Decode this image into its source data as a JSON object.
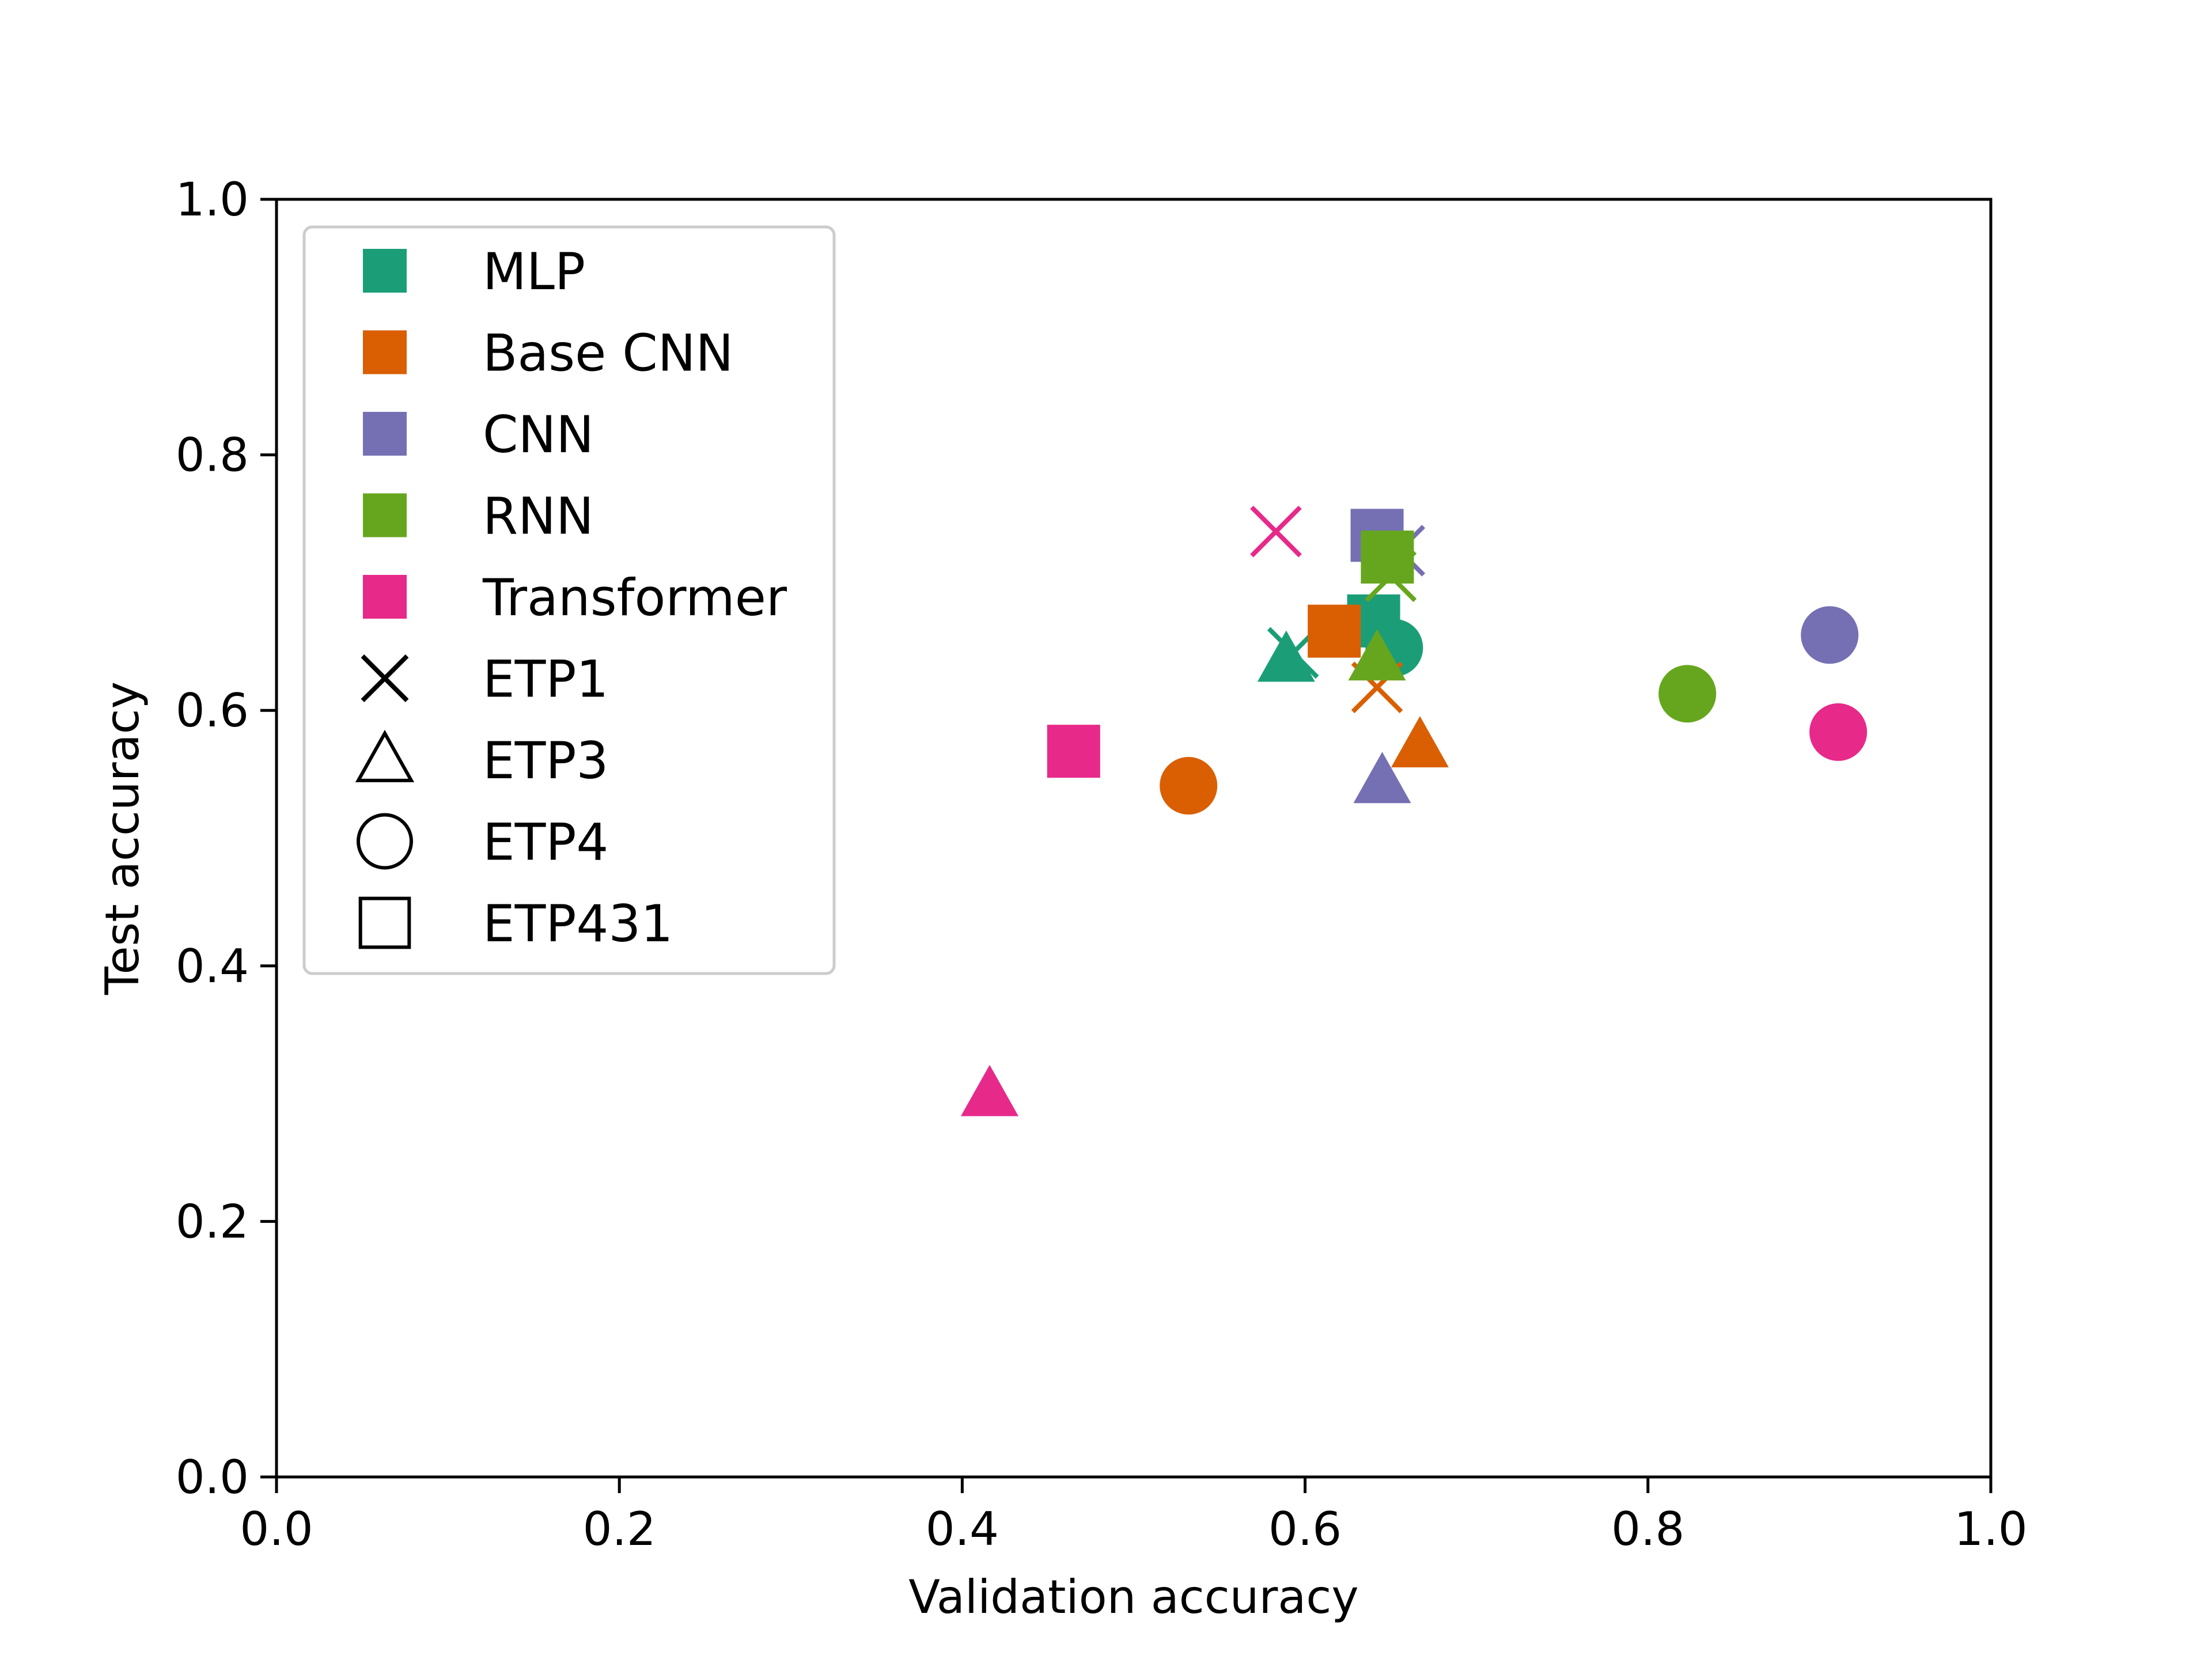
{
  "chart_data": {
    "type": "scatter",
    "title": "",
    "xlabel": "Validation accuracy",
    "ylabel": "Test accuracy",
    "xlim": [
      0.0,
      1.0
    ],
    "ylim": [
      0.0,
      1.0
    ],
    "xticks": [
      "0.0",
      "0.2",
      "0.4",
      "0.6",
      "0.8",
      "1.0"
    ],
    "yticks": [
      "0.0",
      "0.2",
      "0.4",
      "0.6",
      "0.8",
      "1.0"
    ],
    "grid": false,
    "legend_position": "top-left",
    "model_colors": {
      "MLP": "#1b9e77",
      "Base CNN": "#d95f02",
      "CNN": "#7570b3",
      "RNN": "#66a61e",
      "Transformer": "#e7298a"
    },
    "marker_shapes": {
      "ETP1": "x",
      "ETP3": "triangle",
      "ETP4": "circle",
      "ETP431": "square"
    },
    "legend": [
      {
        "label": "MLP",
        "kind": "color",
        "key": "MLP"
      },
      {
        "label": "Base CNN",
        "kind": "color",
        "key": "Base CNN"
      },
      {
        "label": "CNN",
        "kind": "color",
        "key": "CNN"
      },
      {
        "label": "RNN",
        "kind": "color",
        "key": "RNN"
      },
      {
        "label": "Transformer",
        "kind": "color",
        "key": "Transformer"
      },
      {
        "label": "ETP1",
        "kind": "marker",
        "key": "ETP1"
      },
      {
        "label": "ETP3",
        "kind": "marker",
        "key": "ETP3"
      },
      {
        "label": "ETP4",
        "kind": "marker",
        "key": "ETP4"
      },
      {
        "label": "ETP431",
        "kind": "marker",
        "key": "ETP431"
      }
    ],
    "points": [
      {
        "model": "MLP",
        "dataset": "ETP1",
        "x": 0.593,
        "y": 0.645
      },
      {
        "model": "MLP",
        "dataset": "ETP3",
        "x": 0.589,
        "y": 0.64
      },
      {
        "model": "MLP",
        "dataset": "ETP4",
        "x": 0.652,
        "y": 0.649
      },
      {
        "model": "MLP",
        "dataset": "ETP431",
        "x": 0.64,
        "y": 0.67
      },
      {
        "model": "Base CNN",
        "dataset": "ETP1",
        "x": 0.642,
        "y": 0.618
      },
      {
        "model": "Base CNN",
        "dataset": "ETP3",
        "x": 0.667,
        "y": 0.573
      },
      {
        "model": "Base CNN",
        "dataset": "ETP4",
        "x": 0.532,
        "y": 0.541
      },
      {
        "model": "Base CNN",
        "dataset": "ETP431",
        "x": 0.617,
        "y": 0.662
      },
      {
        "model": "CNN",
        "dataset": "ETP1",
        "x": 0.655,
        "y": 0.725
      },
      {
        "model": "CNN",
        "dataset": "ETP3",
        "x": 0.645,
        "y": 0.545
      },
      {
        "model": "CNN",
        "dataset": "ETP4",
        "x": 0.906,
        "y": 0.659
      },
      {
        "model": "CNN",
        "dataset": "ETP431",
        "x": 0.642,
        "y": 0.737
      },
      {
        "model": "RNN",
        "dataset": "ETP1",
        "x": 0.65,
        "y": 0.705
      },
      {
        "model": "RNN",
        "dataset": "ETP3",
        "x": 0.642,
        "y": 0.641
      },
      {
        "model": "RNN",
        "dataset": "ETP4",
        "x": 0.823,
        "y": 0.613
      },
      {
        "model": "RNN",
        "dataset": "ETP431",
        "x": 0.648,
        "y": 0.72
      },
      {
        "model": "Transformer",
        "dataset": "ETP1",
        "x": 0.583,
        "y": 0.74
      },
      {
        "model": "Transformer",
        "dataset": "ETP3",
        "x": 0.416,
        "y": 0.3
      },
      {
        "model": "Transformer",
        "dataset": "ETP4",
        "x": 0.911,
        "y": 0.583
      },
      {
        "model": "Transformer",
        "dataset": "ETP431",
        "x": 0.465,
        "y": 0.568
      }
    ]
  }
}
